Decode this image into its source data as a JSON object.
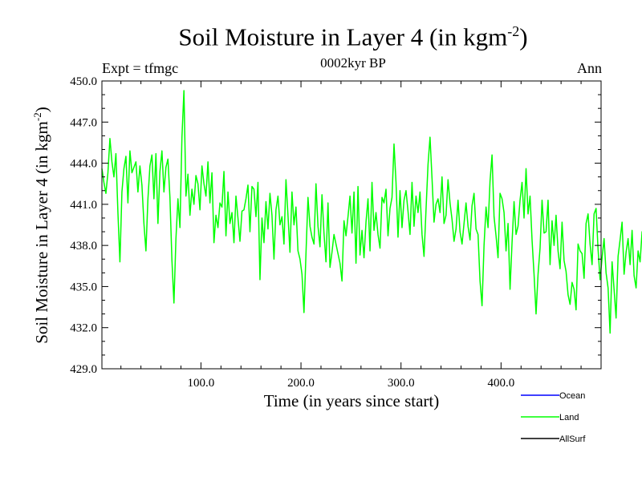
{
  "chart_data": {
    "type": "line",
    "title": "Soil Moisture in Layer 4 (in kgm",
    "title_sup": "-2",
    "title_suffix": ")",
    "experiment_label": "Expt = tfmgc",
    "subtitle": "0002kyr BP",
    "period_label": "Ann",
    "xlabel": "Time (in years since start)",
    "ylabel": "Soil Moisture in Layer 4 (in kgm",
    "ylabel_sup": "-2",
    "ylabel_suffix": ")",
    "xlim": [
      1,
      500
    ],
    "ylim": [
      429.0,
      450.0
    ],
    "x_ticks": [
      100,
      200,
      300,
      400
    ],
    "x_tick_labels": [
      "100.0",
      "200.0",
      "300.0",
      "400.0"
    ],
    "y_ticks": [
      429,
      432,
      435,
      438,
      441,
      444,
      447,
      450
    ],
    "y_tick_labels": [
      "429.0",
      "432.0",
      "435.0",
      "438.0",
      "441.0",
      "444.0",
      "447.0",
      "450.0"
    ],
    "grid": false,
    "legend_position": "bottom-right",
    "series": [
      {
        "name": "Ocean",
        "color": "#0000ff",
        "values": []
      },
      {
        "name": "Land",
        "color": "#00ff00",
        "x_start": 1,
        "x_step": 2,
        "values": [
          443.6,
          442.6,
          441.8,
          443.3,
          445.8,
          444.1,
          443.0,
          444.7,
          440.4,
          436.8,
          441.9,
          443.6,
          444.5,
          441.1,
          444.9,
          443.3,
          443.7,
          444.1,
          441.9,
          443.8,
          442.4,
          439.6,
          437.6,
          441.4,
          443.8,
          444.6,
          441.4,
          444.7,
          439.6,
          443.4,
          444.9,
          441.9,
          443.7,
          444.3,
          441.5,
          436.9,
          433.8,
          438.5,
          441.4,
          439.3,
          445.9,
          449.3,
          441.6,
          443.2,
          440.2,
          442.1,
          441.0,
          443.1,
          442.5,
          440.6,
          443.8,
          442.5,
          441.6,
          444.1,
          441.1,
          443.3,
          438.2,
          440.2,
          439.3,
          441.1,
          440.8,
          443.4,
          438.7,
          441.9,
          439.6,
          440.4,
          438.2,
          441.6,
          440.0,
          438.3,
          440.5,
          440.6,
          441.4,
          442.4,
          439.0,
          442.3,
          442.1,
          440.1,
          442.6,
          435.5,
          440.0,
          438.2,
          441.2,
          439.2,
          441.8,
          440.2,
          437.0,
          440.6,
          441.6,
          439.5,
          440.1,
          438.1,
          442.8,
          440.2,
          437.5,
          441.9,
          439.5,
          440.8,
          437.6,
          437.0,
          435.9,
          433.1,
          437.4,
          441.5,
          439.4,
          438.6,
          438.1,
          442.5,
          439.4,
          437.9,
          441.7,
          438.9,
          436.8,
          441.1,
          436.4,
          437.5,
          438.8,
          438.1,
          437.4,
          436.7,
          435.4,
          439.8,
          438.7,
          440.1,
          441.6,
          438.9,
          441.9,
          436.7,
          442.3,
          437.3,
          439.1,
          437.1,
          439.7,
          441.4,
          437.6,
          442.6,
          439.1,
          440.4,
          438.8,
          437.8,
          441.5,
          441.1,
          442.1,
          438.7,
          440.7,
          441.5,
          445.4,
          442.6,
          438.6,
          442.0,
          439.3,
          441.3,
          442.0,
          440.5,
          438.8,
          442.6,
          439.4,
          441.6,
          440.4,
          441.9,
          438.8,
          437.2,
          440.6,
          443.9,
          445.9,
          442.9,
          439.7,
          441.0,
          441.4,
          440.4,
          443.0,
          439.6,
          440.2,
          442.8,
          441.1,
          439.9,
          438.3,
          439.2,
          441.3,
          439.0,
          438.1,
          439.6,
          441.1,
          439.4,
          438.4,
          440.9,
          441.8,
          439.2,
          438.8,
          435.4,
          433.6,
          438.0,
          440.8,
          439.3,
          442.7,
          444.6,
          440.1,
          438.7,
          437.1,
          441.8,
          441.4,
          440.4,
          437.6,
          439.6,
          434.8,
          438.2,
          441.2,
          438.8,
          439.4,
          441.3,
          442.6,
          440.0,
          443.6,
          440.3,
          441.6,
          438.4,
          435.9,
          433.0,
          435.9,
          437.8,
          441.3,
          438.9,
          439.0,
          441.3,
          436.6,
          439.8,
          438.0,
          440.2,
          437.6,
          436.3,
          439.7,
          436.9,
          436.1,
          434.4,
          433.7,
          435.3,
          434.8,
          433.3,
          438.1,
          437.6,
          437.4,
          435.6,
          439.6,
          440.3,
          438.1,
          436.6,
          440.3,
          440.7,
          437.7,
          435.5,
          437.1,
          438.5,
          436.0,
          434.9,
          431.6,
          436.8,
          434.8,
          432.7,
          437.2,
          438.4,
          439.7,
          435.9,
          437.5,
          438.5,
          436.6,
          439.1,
          435.8,
          434.9,
          437.6,
          436.8,
          439.0,
          437.8,
          436.5,
          438.3,
          440.2,
          437.1,
          438.6,
          436.4,
          439.3,
          437.9,
          441.1,
          437.5,
          436.4,
          436.7,
          435.3,
          437.0,
          438.1,
          437.0,
          439.1,
          437.0,
          436.1,
          436.2,
          438.2,
          436.6,
          437.2,
          435.9,
          438.7,
          439.9,
          436.9,
          438.1,
          434.2,
          436.4,
          436.5,
          437.4,
          439.4,
          437.2,
          435.6,
          438.0,
          438.1,
          435.9,
          437.0,
          436.6,
          437.6,
          438.2,
          437.8,
          440.6,
          439.0,
          437.6,
          433.7,
          435.0,
          435.9,
          436.4,
          439.8,
          437.0,
          436.1,
          435.1,
          437.6,
          436.1,
          435.7,
          434.0,
          433.6,
          434.0
        ]
      },
      {
        "name": "AllSurf",
        "color": "#000000",
        "values": []
      }
    ]
  }
}
